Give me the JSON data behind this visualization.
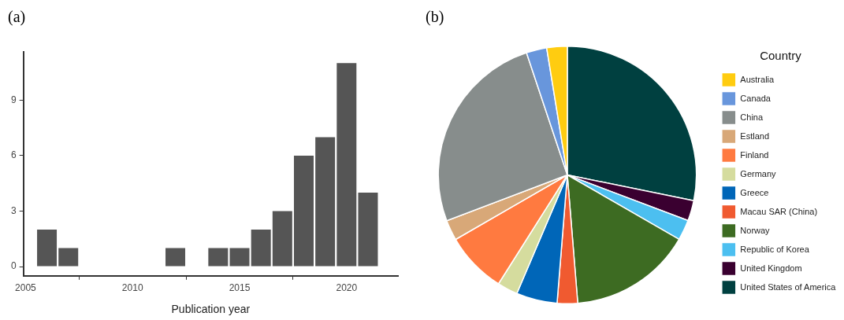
{
  "chart_data": [
    {
      "type": "bar",
      "title": "(a)",
      "xlabel": "Publication year",
      "x": [
        2006,
        2007,
        2012,
        2014,
        2015,
        2016,
        2017,
        2018,
        2019,
        2020,
        2021
      ],
      "values": [
        2,
        1,
        1,
        1,
        1,
        2,
        3,
        6,
        7,
        11,
        4
      ],
      "color": "#555555",
      "xlim": [
        2004.9,
        2022.4
      ],
      "xticks": [
        2005,
        2010,
        2015,
        2020
      ],
      "ylim": [
        -0.5,
        11.6
      ],
      "yticks": [
        0,
        3,
        6,
        9
      ],
      "grid": false
    },
    {
      "type": "pie",
      "title": "(b)",
      "legend_title": "Country",
      "legend": "right",
      "categories": [
        "United States of America",
        "United Kingdom",
        "Republic of Korea",
        "Norway",
        "Macau SAR (China)",
        "Greece",
        "Germany",
        "Finland",
        "Estland",
        "China",
        "Canada",
        "Australia"
      ],
      "values": [
        28.21,
        2.56,
        2.56,
        15.38,
        2.56,
        5.13,
        2.56,
        7.69,
        2.56,
        25.67,
        2.56,
        2.56
      ],
      "colors": [
        "#004040",
        "#3a0030",
        "#4cbff0",
        "#3d6b22",
        "#f05a30",
        "#0066b8",
        "#d5dc9e",
        "#ff7a40",
        "#d8a878",
        "#878d8c",
        "#6896dc",
        "#ffcc10"
      ]
    }
  ]
}
